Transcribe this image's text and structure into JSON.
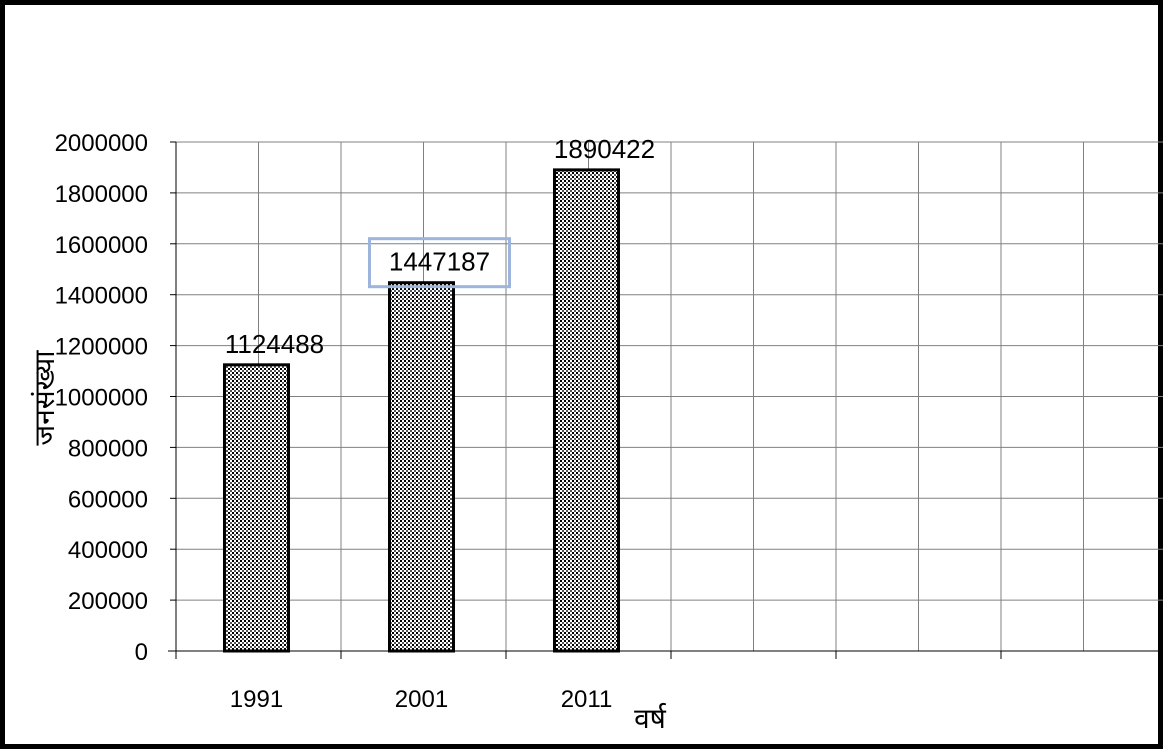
{
  "chart_data": {
    "type": "bar",
    "categories": [
      "1991",
      "2001",
      "2011"
    ],
    "values": [
      1124488,
      1447187,
      1890422
    ],
    "title": "",
    "xlabel": "वर्ष",
    "ylabel": "जनसंख्या",
    "ylim": [
      0,
      2000000
    ],
    "yticks": [
      0,
      200000,
      400000,
      600000,
      800000,
      1000000,
      1200000,
      1400000,
      1600000,
      1800000,
      2000000
    ],
    "grid": true,
    "legend": "none",
    "highlighted_label_index": 1,
    "colors": {
      "bar_pattern_fg": "#000000",
      "bar_pattern_bg": "#ffffff",
      "grid": "#808080",
      "highlight_box": "#9db4dd"
    }
  }
}
